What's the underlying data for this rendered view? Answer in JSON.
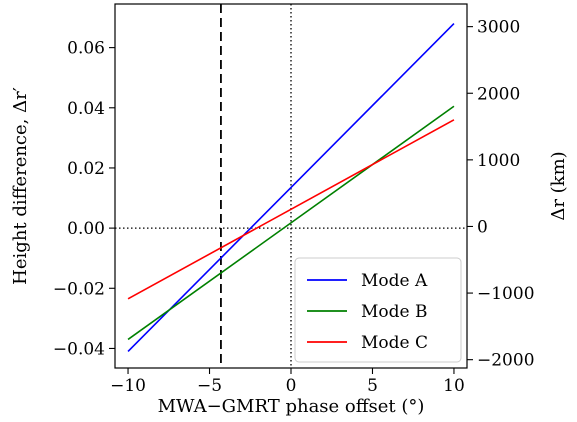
{
  "chart_data": {
    "type": "line",
    "xlabel": "MWA−GMRT phase offset (°)",
    "ylabel": "Height difference, Δr′",
    "ylabel_right": "Δr (km)",
    "xlim": [
      -10.8,
      10.8
    ],
    "ylim": [
      -0.0465,
      0.0745
    ],
    "ylim_right": [
      -2125,
      3340
    ],
    "xticks": [
      -10,
      -5,
      0,
      5,
      10
    ],
    "xtick_labels": [
      "−10",
      "−5",
      "0",
      "5",
      "10"
    ],
    "yticks": [
      -0.04,
      -0.02,
      0.0,
      0.02,
      0.04,
      0.06
    ],
    "ytick_labels": [
      "−0.04",
      "−0.02",
      "0.00",
      "0.02",
      "0.04",
      "0.06"
    ],
    "yticks_right": [
      -2000,
      -1000,
      0,
      1000,
      2000,
      3000
    ],
    "ytick_labels_right": [
      "−2000",
      "−1000",
      "0",
      "1000",
      "2000",
      "3000"
    ],
    "vlines": [
      {
        "x": -4.3,
        "style": "dashed",
        "color": "#000000"
      },
      {
        "x": 0,
        "style": "dotted",
        "color": "#000000"
      }
    ],
    "hlines": [
      {
        "y": 0,
        "style": "dotted",
        "color": "#000000"
      }
    ],
    "series": [
      {
        "name": "Mode A",
        "color": "#0000ff",
        "x": [
          -10,
          10
        ],
        "y": [
          -0.041,
          0.068
        ]
      },
      {
        "name": "Mode B",
        "color": "#008000",
        "x": [
          -10,
          10
        ],
        "y": [
          -0.037,
          0.0405
        ]
      },
      {
        "name": "Mode C",
        "color": "#ff0000",
        "x": [
          -10,
          10
        ],
        "y": [
          -0.0235,
          0.036
        ]
      }
    ],
    "legend_position": "lower-right",
    "grid": false
  }
}
